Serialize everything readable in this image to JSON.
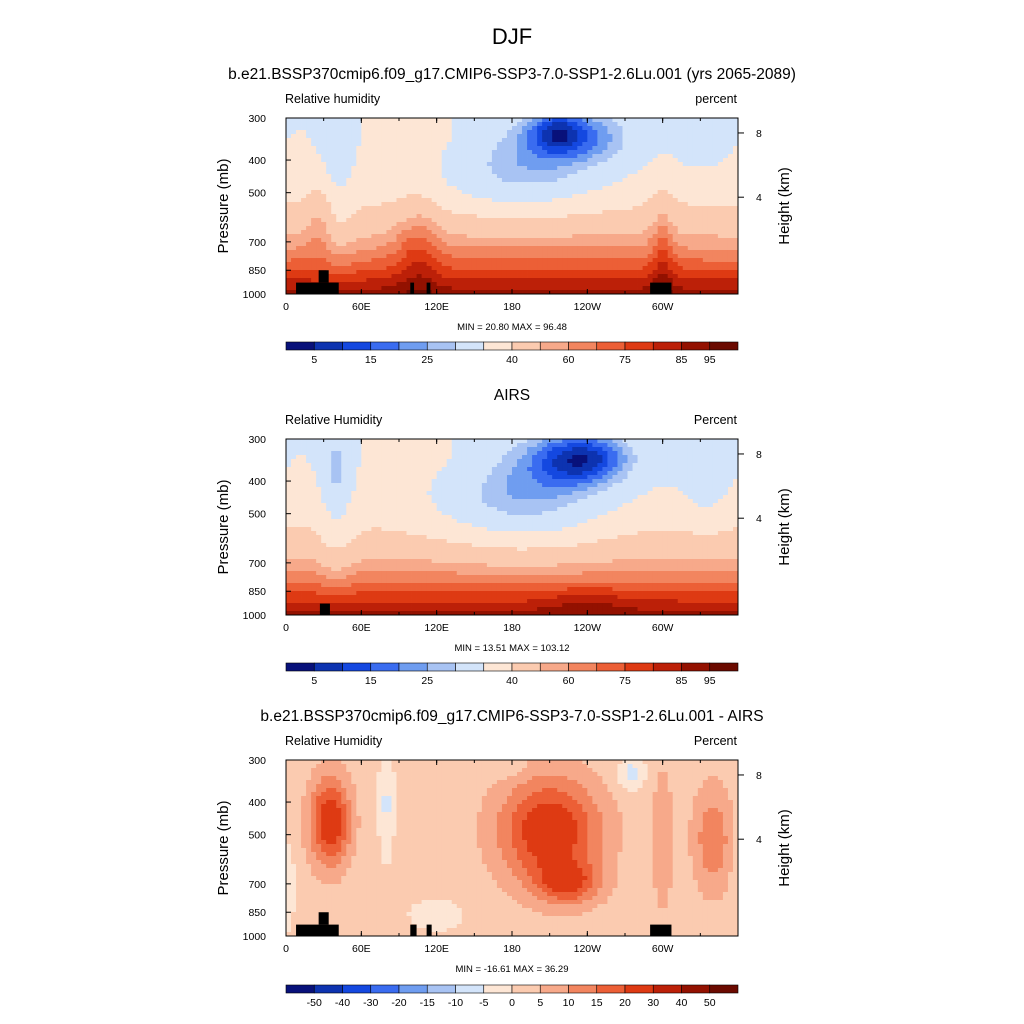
{
  "figure": {
    "title": "DJF"
  },
  "chart_data": [
    {
      "type": "heatmap",
      "title": "b.e21.BSSP370cmip6.f09_g17.CMIP6-SSP3-7.0-SSP1-2.6Lu.001 (yrs 2065-2089)",
      "left_label": "Relative humidity",
      "right_label": "percent",
      "ylabel": "Pressure (mb)",
      "ylabel_right": "Height (km)",
      "x_ticks": [
        "0",
        "60E",
        "120E",
        "180",
        "120W",
        "60W"
      ],
      "y_ticks": [
        "300",
        "400",
        "500",
        "700",
        "850",
        "1000"
      ],
      "y_ticks_right": [
        "8",
        "4"
      ],
      "stats": "MIN = 20.80 MAX = 96.48",
      "min": 20.8,
      "max": 96.48,
      "colorbar_labels": [
        "5",
        "15",
        "25",
        "40",
        "60",
        "75",
        "85",
        "95"
      ],
      "levels": [
        0,
        5,
        10,
        15,
        20,
        25,
        30,
        40,
        50,
        60,
        65,
        70,
        75,
        80,
        85,
        90,
        95
      ],
      "colors": [
        "#08117a",
        "#0d33b0",
        "#1448e0",
        "#3a6cf0",
        "#6f9df0",
        "#a8c3f3",
        "#d3e4fa",
        "#fde6d5",
        "#fbcbb0",
        "#f7a98a",
        "#f2855f",
        "#ec5f36",
        "#de3a13",
        "#bc2008",
        "#931100",
        "#6b0a00"
      ],
      "topography": [
        {
          "lon": [
            8,
            42
          ],
          "p": [
            925,
            1000
          ]
        },
        {
          "lon": [
            26,
            34
          ],
          "p": [
            850,
            925
          ]
        },
        {
          "lon": [
            99,
            102
          ],
          "p": [
            925,
            1000
          ]
        },
        {
          "lon": [
            112,
            115
          ],
          "p": [
            925,
            1000
          ]
        },
        {
          "lon": [
            290,
            307
          ],
          "p": [
            925,
            1000
          ]
        }
      ]
    },
    {
      "type": "heatmap",
      "title": "AIRS",
      "left_label": "Relative Humidity",
      "right_label": "Percent",
      "ylabel": "Pressure (mb)",
      "ylabel_right": "Height (km)",
      "x_ticks": [
        "0",
        "60E",
        "120E",
        "180",
        "120W",
        "60W"
      ],
      "y_ticks": [
        "300",
        "400",
        "500",
        "700",
        "850",
        "1000"
      ],
      "y_ticks_right": [
        "8",
        "4"
      ],
      "stats": "MIN = 13.51 MAX = 103.12",
      "min": 13.51,
      "max": 103.12,
      "colorbar_labels": [
        "5",
        "15",
        "25",
        "40",
        "60",
        "75",
        "85",
        "95"
      ],
      "levels": [
        0,
        5,
        10,
        15,
        20,
        25,
        30,
        40,
        50,
        60,
        65,
        70,
        75,
        80,
        85,
        90,
        95
      ],
      "colors": [
        "#08117a",
        "#0d33b0",
        "#1448e0",
        "#3a6cf0",
        "#6f9df0",
        "#a8c3f3",
        "#d3e4fa",
        "#fde6d5",
        "#fbcbb0",
        "#f7a98a",
        "#f2855f",
        "#ec5f36",
        "#de3a13",
        "#bc2008",
        "#931100",
        "#6b0a00"
      ],
      "topography": [
        {
          "lon": [
            27,
            35
          ],
          "p": [
            925,
            1000
          ]
        }
      ]
    },
    {
      "type": "heatmap",
      "title": "b.e21.BSSP370cmip6.f09_g17.CMIP6-SSP3-7.0-SSP1-2.6Lu.001 - AIRS",
      "left_label": "Relative Humidity",
      "right_label": "Percent",
      "ylabel": "Pressure (mb)",
      "ylabel_right": "Height (km)",
      "x_ticks": [
        "0",
        "60E",
        "120E",
        "180",
        "120W",
        "60W"
      ],
      "y_ticks": [
        "300",
        "400",
        "500",
        "700",
        "850",
        "1000"
      ],
      "y_ticks_right": [
        "8",
        "4"
      ],
      "stats": "MIN = -16.61 MAX = 36.29",
      "min": -16.61,
      "max": 36.29,
      "colorbar_labels": [
        "-50",
        "-40",
        "-30",
        "-20",
        "-15",
        "-10",
        "-5",
        "0",
        "5",
        "10",
        "15",
        "20",
        "30",
        "40",
        "50"
      ],
      "levels": [
        -60,
        -50,
        -40,
        -30,
        -20,
        -15,
        -10,
        -5,
        0,
        5,
        10,
        15,
        20,
        30,
        40,
        50
      ],
      "colors": [
        "#08117a",
        "#0d33b0",
        "#1448e0",
        "#3a6cf0",
        "#6f9df0",
        "#a8c3f3",
        "#d3e4fa",
        "#fde6d5",
        "#fbcbb0",
        "#f7a98a",
        "#f2855f",
        "#ec5f36",
        "#de3a13",
        "#bc2008",
        "#931100",
        "#6b0a00"
      ],
      "topography": [
        {
          "lon": [
            8,
            42
          ],
          "p": [
            925,
            1000
          ]
        },
        {
          "lon": [
            26,
            34
          ],
          "p": [
            850,
            925
          ]
        },
        {
          "lon": [
            99,
            104
          ],
          "p": [
            925,
            1000
          ]
        },
        {
          "lon": [
            112,
            116
          ],
          "p": [
            925,
            1000
          ]
        },
        {
          "lon": [
            290,
            307
          ],
          "p": [
            925,
            1000
          ]
        }
      ]
    }
  ]
}
